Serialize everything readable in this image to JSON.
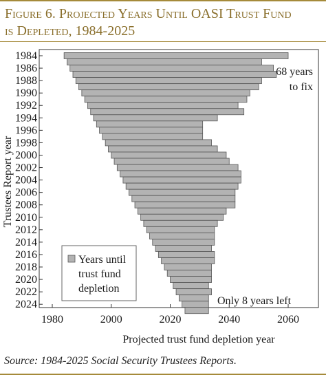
{
  "figure": {
    "title_line1": "Figure 6. Projected Years Until OASI Trust Fund",
    "title_line2": "is Depleted, 1984-2025",
    "source": "Source: 1984-2025 Social Security Trustees Reports."
  },
  "chart_data": {
    "type": "bar",
    "orientation": "horizontal-floating",
    "xlabel": "Projected trust fund depletion year",
    "ylabel": "Trustees Report year",
    "xlim": [
      1980,
      2065
    ],
    "xticks": [
      1980,
      2000,
      2020,
      2040,
      2060
    ],
    "ytick_labels": [
      "1984",
      "1986",
      "1988",
      "1990",
      "1992",
      "1994",
      "1996",
      "1998",
      "2000",
      "2002",
      "2004",
      "2006",
      "2008",
      "2010",
      "2012",
      "2014",
      "2016",
      "2018",
      "2020",
      "2022",
      "2024"
    ],
    "legend": {
      "label_lines": [
        "Years until",
        "trust fund",
        "depletion"
      ],
      "placement": "bottom-left"
    },
    "annotations": [
      {
        "lines": [
          "68 years",
          "to fix"
        ],
        "anchor": "top-right"
      },
      {
        "lines": [
          "Only 8 years left"
        ],
        "anchor": "bottom-right"
      }
    ],
    "series": [
      {
        "name": "Years until trust fund depletion",
        "color": "#b3b3b3",
        "edge": "#555555",
        "report_years": [
          1984,
          1985,
          1986,
          1987,
          1988,
          1989,
          1990,
          1991,
          1992,
          1993,
          1994,
          1995,
          1996,
          1997,
          1998,
          1999,
          2000,
          2001,
          2002,
          2003,
          2004,
          2005,
          2006,
          2007,
          2008,
          2009,
          2010,
          2011,
          2012,
          2013,
          2014,
          2015,
          2016,
          2017,
          2018,
          2019,
          2020,
          2021,
          2022,
          2023,
          2024,
          2025
        ],
        "depletion_years": [
          2060,
          2051,
          2055,
          2056,
          2051,
          2050,
          2047,
          2046,
          2043,
          2045,
          2036,
          2031,
          2031,
          2031,
          2034,
          2036,
          2039,
          2040,
          2043,
          2044,
          2044,
          2043,
          2042,
          2042,
          2042,
          2039,
          2038,
          2036,
          2035,
          2035,
          2035,
          2034,
          2035,
          2035,
          2034,
          2034,
          2034,
          2033,
          2034,
          2033,
          2033,
          2033
        ]
      }
    ]
  }
}
